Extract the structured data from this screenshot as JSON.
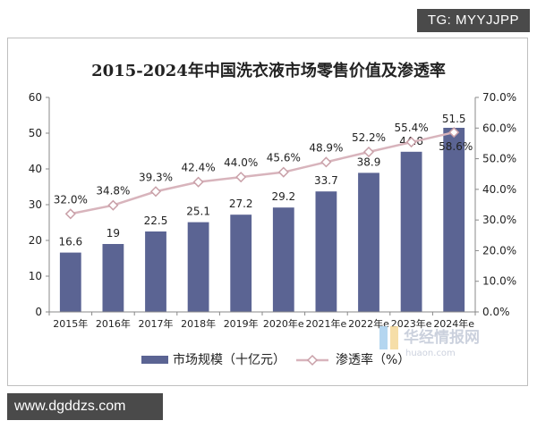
{
  "watermark_top": "TG: MYYJJPP",
  "watermark_bottom": "www.dgddzs.com",
  "logo": {
    "text": "华经情报网",
    "sub": "huaon.com"
  },
  "colors": {
    "bar": "#5b6493",
    "line": "#d8b4bc",
    "marker_stroke": "#c9a0a8",
    "text": "#222222",
    "axis": "#888888"
  },
  "chart_data": {
    "type": "bar",
    "title": "2015-2024年中国洗衣液市场零售价值及渗透率",
    "categories": [
      "2015年",
      "2016年",
      "2017年",
      "2018年",
      "2019年",
      "2020年e",
      "2021年e",
      "2022年e",
      "2023年e",
      "2024年e"
    ],
    "series": [
      {
        "name": "市场规模（十亿元）",
        "type": "bar",
        "axis": "left",
        "values": [
          16.6,
          19,
          22.5,
          25.1,
          27.2,
          29.2,
          33.7,
          38.9,
          44.8,
          51.5
        ],
        "labels": [
          "16.6",
          "19",
          "22.5",
          "25.1",
          "27.2",
          "29.2",
          "33.7",
          "38.9",
          "44.8",
          "51.5"
        ]
      },
      {
        "name": "渗透率（%）",
        "type": "line",
        "axis": "right",
        "values": [
          32.0,
          34.8,
          39.3,
          42.4,
          44.0,
          45.6,
          48.9,
          52.2,
          55.4,
          58.6
        ],
        "labels": [
          "32.0%",
          "34.8%",
          "39.3%",
          "42.4%",
          "44.0%",
          "45.6%",
          "48.9%",
          "52.2%",
          "55.4%",
          "58.6%"
        ]
      }
    ],
    "y_left": {
      "min": 0,
      "max": 60,
      "ticks": [
        "0",
        "10",
        "20",
        "30",
        "40",
        "50",
        "60"
      ]
    },
    "y_right": {
      "min": 0,
      "max": 70,
      "ticks": [
        "0.0%",
        "10.0%",
        "20.0%",
        "30.0%",
        "40.0%",
        "50.0%",
        "60.0%",
        "70.0%"
      ]
    },
    "grid": false,
    "legend_position": "bottom"
  }
}
